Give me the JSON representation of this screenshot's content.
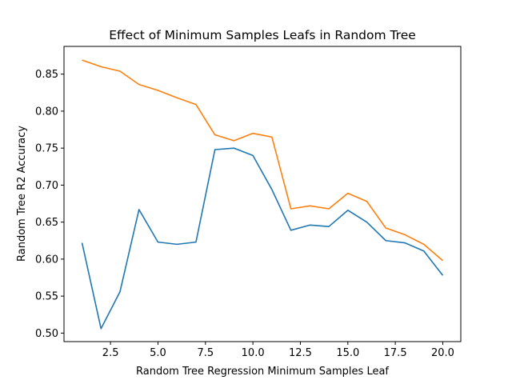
{
  "chart_data": {
    "type": "line",
    "title": "Effect of Minimum Samples Leafs in Random Tree",
    "xlabel": "Random Tree Regression Minimum Samples Leaf",
    "ylabel": "Random Tree R2 Accuracy",
    "xlim": [
      0.05,
      20.95
    ],
    "ylim": [
      0.4885,
      0.8875
    ],
    "grid": false,
    "x_ticks": [
      2.5,
      5.0,
      7.5,
      10.0,
      12.5,
      15.0,
      17.5,
      20.0
    ],
    "x_tick_labels": [
      "2.5",
      "5.0",
      "7.5",
      "10.0",
      "12.5",
      "15.0",
      "17.5",
      "20.0"
    ],
    "y_ticks": [
      0.5,
      0.55,
      0.6,
      0.65,
      0.7,
      0.75,
      0.8,
      0.85
    ],
    "y_tick_labels": [
      "0.50",
      "0.55",
      "0.60",
      "0.65",
      "0.70",
      "0.75",
      "0.80",
      "0.85"
    ],
    "x": [
      1,
      2,
      3,
      4,
      5,
      6,
      7,
      8,
      9,
      10,
      11,
      12,
      13,
      14,
      15,
      16,
      17,
      18,
      19,
      20
    ],
    "series": [
      {
        "color": "#1f77b4",
        "values": [
          0.622,
          0.506,
          0.556,
          0.667,
          0.623,
          0.62,
          0.623,
          0.748,
          0.75,
          0.74,
          0.694,
          0.639,
          0.646,
          0.644,
          0.666,
          0.65,
          0.625,
          0.622,
          0.611,
          0.578
        ]
      },
      {
        "color": "#ff7f0e",
        "values": [
          0.869,
          0.86,
          0.854,
          0.836,
          0.828,
          0.818,
          0.809,
          0.768,
          0.76,
          0.77,
          0.765,
          0.668,
          0.672,
          0.668,
          0.689,
          0.678,
          0.642,
          0.633,
          0.62,
          0.598
        ]
      }
    ]
  }
}
